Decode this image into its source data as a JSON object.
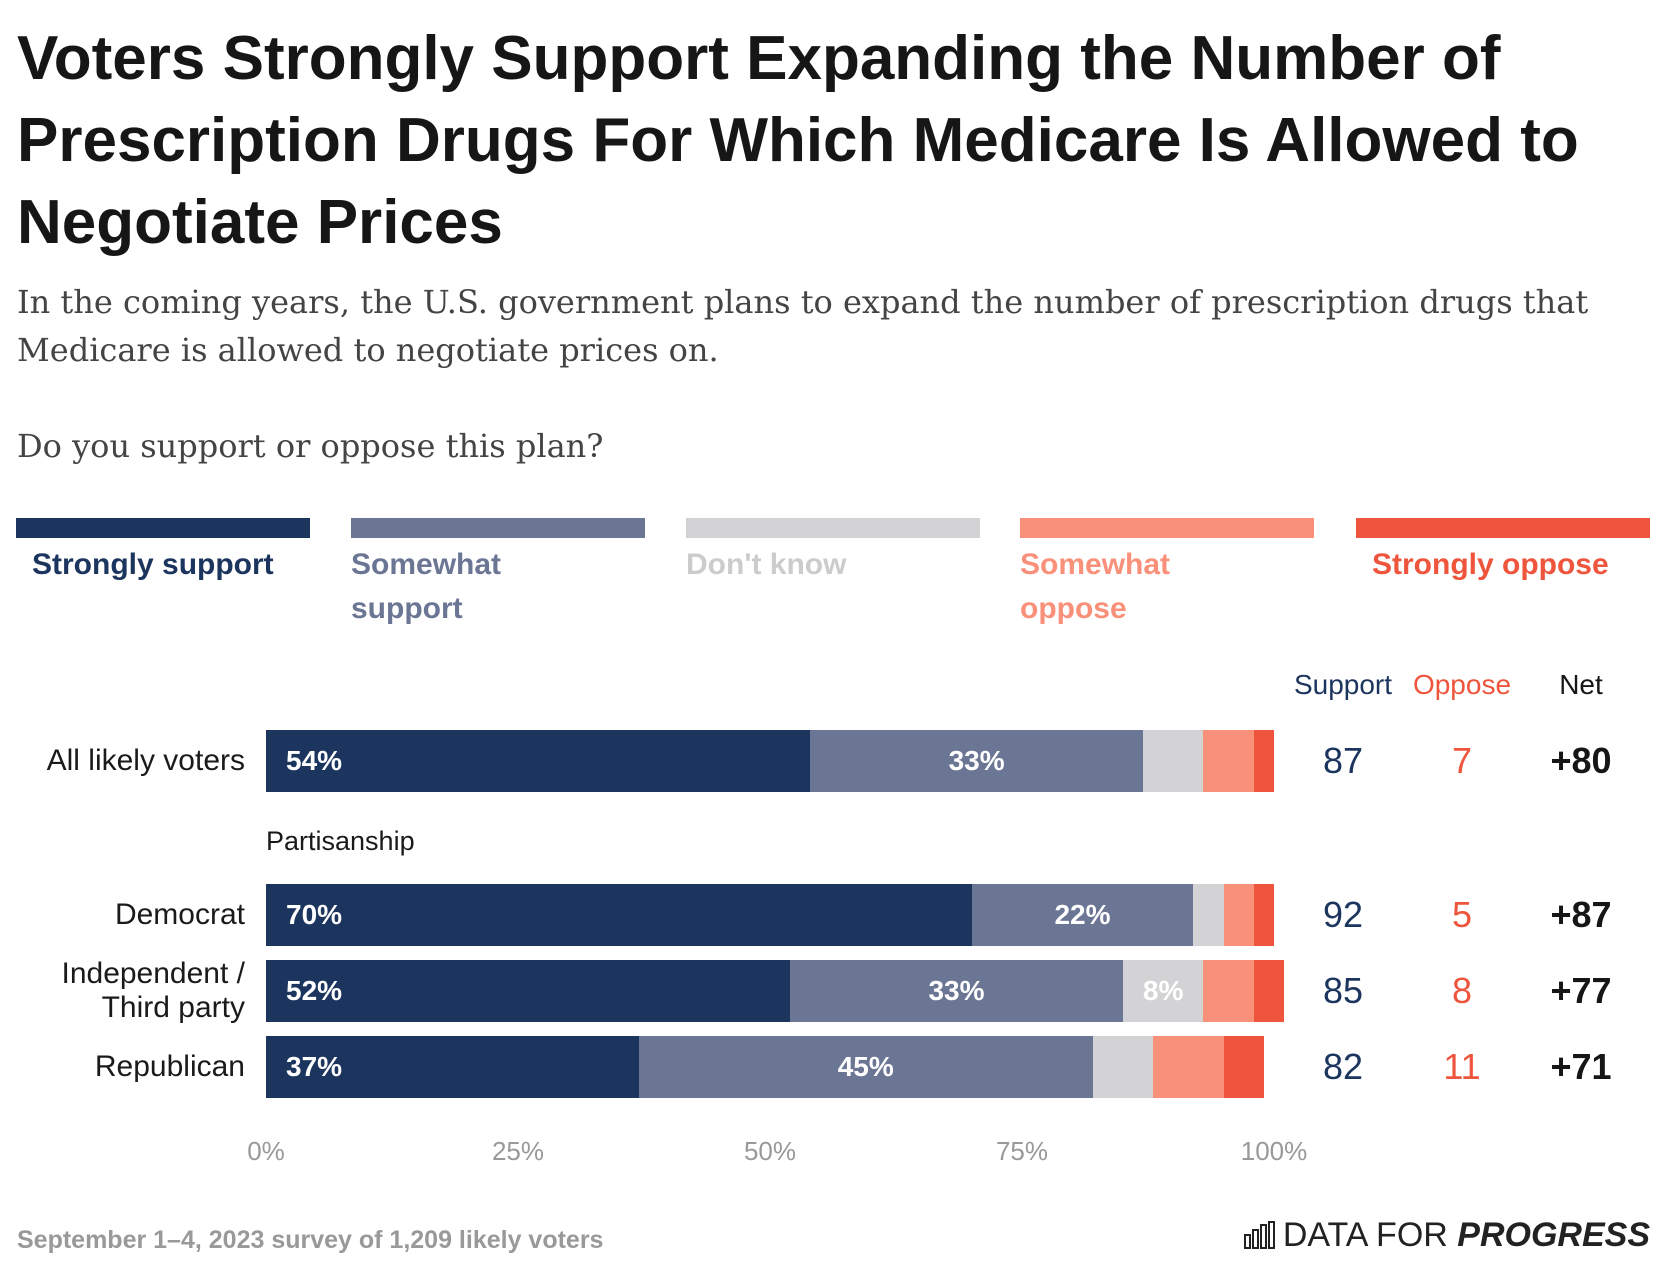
{
  "chart_data": {
    "type": "stacked-bar-horizontal",
    "title": "Voters Strongly Support Expanding the Number of Prescription Drugs For Which Medicare Is Allowed to Negotiate Prices",
    "subtitle": "In the coming years, the U.S. government plans to expand the number of prescription drugs that Medicare is allowed to negotiate prices on.",
    "question": "Do you support or oppose this plan?",
    "annotations": [
      "Partisanship"
    ],
    "categories": [
      "All likely voters",
      "Democrat",
      "Independent / Third party",
      "Republican"
    ],
    "series": [
      {
        "name": "Strongly support",
        "color": "#1c355e",
        "values": [
          54,
          70,
          52,
          37
        ],
        "value_labels": [
          "54%",
          "70%",
          "52%",
          "37%"
        ]
      },
      {
        "name": "Somewhat support",
        "color": "#6b7594",
        "values": [
          33,
          22,
          33,
          45
        ],
        "value_labels": [
          "33%",
          "22%",
          "33%",
          "45%"
        ]
      },
      {
        "name": "Don't know",
        "color": "#d3d3d5",
        "values": [
          6,
          3,
          8,
          6
        ],
        "value_labels": [
          null,
          null,
          "8%",
          null
        ]
      },
      {
        "name": "Somewhat oppose",
        "color": "#f9907a",
        "values": [
          5,
          3,
          5,
          7
        ]
      },
      {
        "name": "Strongly oppose",
        "color": "#ee553c",
        "values": [
          2,
          2,
          3,
          4
        ]
      }
    ],
    "xlim": [
      0,
      100
    ],
    "xticks": [
      {
        "value": 0,
        "label": "0%"
      },
      {
        "value": 25,
        "label": "25%"
      },
      {
        "value": 50,
        "label": "50%"
      },
      {
        "value": 75,
        "label": "75%"
      },
      {
        "value": 100,
        "label": "100%"
      }
    ],
    "table": {
      "columns": [
        "Support",
        "Oppose",
        "Net"
      ],
      "rows": [
        [
          87,
          7,
          "+80"
        ],
        [
          92,
          5,
          "+87"
        ],
        [
          85,
          8,
          "+77"
        ],
        [
          82,
          11,
          "+71"
        ]
      ]
    },
    "note": "September 1–4, 2023 survey of 1,209 likely voters",
    "brand": [
      "DATA FOR",
      "PROGRESS"
    ]
  }
}
